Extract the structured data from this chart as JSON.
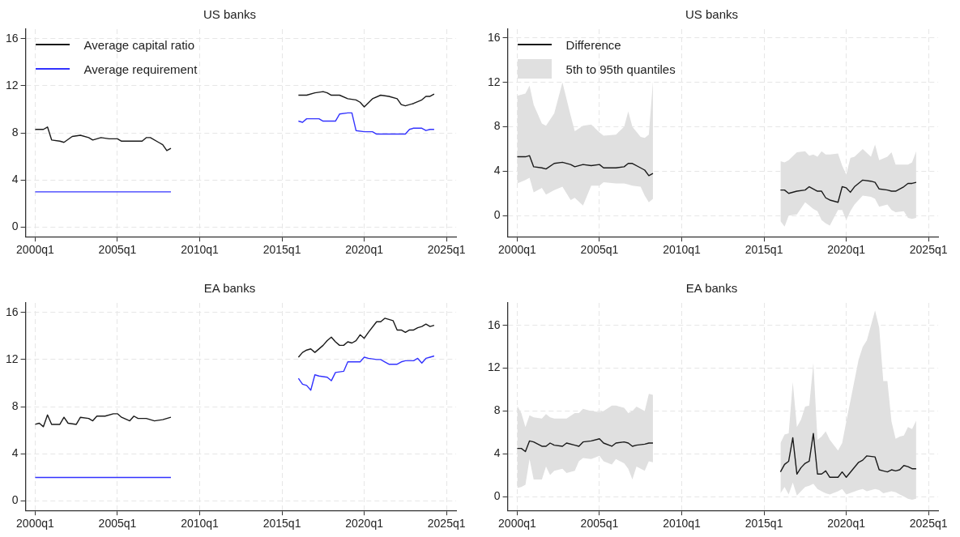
{
  "chart_data": [
    {
      "type": "line",
      "title": "US banks",
      "xlim": [
        "1999-06",
        "2025-08"
      ],
      "xticks": [
        {
          "value": "2000-01",
          "label": "2000q1"
        },
        {
          "value": "2005-01",
          "label": "2005q1"
        },
        {
          "value": "2010-01",
          "label": "2010q1"
        },
        {
          "value": "2015-01",
          "label": "2015q1"
        },
        {
          "value": "2020-01",
          "label": "2020q1"
        },
        {
          "value": "2025-01",
          "label": "2025q1"
        }
      ],
      "ylim": [
        -0.8,
        16.8
      ],
      "yticks": [
        0,
        4,
        8,
        12,
        16
      ],
      "grid": true,
      "legend": "top left",
      "series": [
        {
          "name": "Average capital ratio",
          "color": "#1a1a1a",
          "x": [
            "2000-01",
            "2000-07",
            "2000-10",
            "2001-01",
            "2001-07",
            "2001-10",
            "2002-04",
            "2002-10",
            "2003-04",
            "2003-07",
            "2004-01",
            "2004-07",
            "2005-01",
            "2005-04",
            "2006-01",
            "2006-07",
            "2006-10",
            "2007-01",
            "2007-07",
            "2007-10",
            "2008-01",
            "2008-04",
            "2012-01",
            "2016-01",
            "2016-07",
            "2017-01",
            "2017-07",
            "2017-10",
            "2018-01",
            "2018-07",
            "2019-01",
            "2019-07",
            "2019-10",
            "2020-01",
            "2020-07",
            "2021-01",
            "2021-07",
            "2022-01",
            "2022-04",
            "2022-07",
            "2023-01",
            "2023-07",
            "2023-10",
            "2024-01",
            "2024-04"
          ],
          "values": [
            8.3,
            8.3,
            8.5,
            7.4,
            7.3,
            7.2,
            7.7,
            7.8,
            7.6,
            7.4,
            7.6,
            7.5,
            7.5,
            7.3,
            7.3,
            7.3,
            7.6,
            7.6,
            7.2,
            7.0,
            6.5,
            6.7,
            null,
            11.2,
            11.2,
            11.4,
            11.5,
            11.4,
            11.2,
            11.2,
            10.9,
            10.8,
            10.6,
            10.2,
            10.9,
            11.2,
            11.1,
            10.9,
            10.4,
            10.3,
            10.5,
            10.8,
            11.1,
            11.1,
            11.3
          ]
        },
        {
          "name": "Average requirement",
          "color": "#3333ff",
          "x": [
            "2000-01",
            "2008-04",
            "2012-01",
            "2016-01",
            "2016-04",
            "2016-07",
            "2017-04",
            "2017-07",
            "2018-04",
            "2018-07",
            "2019-01",
            "2019-04",
            "2019-07",
            "2020-01",
            "2020-07",
            "2020-10",
            "2021-07",
            "2022-01",
            "2022-07",
            "2022-10",
            "2023-01",
            "2023-07",
            "2023-10",
            "2024-01",
            "2024-04"
          ],
          "values": [
            3.0,
            3.0,
            null,
            9.0,
            8.9,
            9.2,
            9.2,
            9.0,
            9.0,
            9.6,
            9.7,
            9.7,
            8.2,
            8.1,
            8.1,
            7.9,
            7.9,
            7.9,
            7.9,
            8.3,
            8.4,
            8.4,
            8.2,
            8.3,
            8.3
          ]
        }
      ]
    },
    {
      "type": "line",
      "title": "US banks",
      "xlim": [
        "1999-06",
        "2025-08"
      ],
      "xticks": [
        {
          "value": "2000-01",
          "label": "2000q1"
        },
        {
          "value": "2005-01",
          "label": "2005q1"
        },
        {
          "value": "2010-01",
          "label": "2010q1"
        },
        {
          "value": "2015-01",
          "label": "2015q1"
        },
        {
          "value": "2020-01",
          "label": "2020q1"
        },
        {
          "value": "2025-01",
          "label": "2025q1"
        }
      ],
      "ylim": [
        -1.9,
        16.8
      ],
      "yticks": [
        0,
        4,
        8,
        12,
        16
      ],
      "grid": true,
      "legend": "top left",
      "annotations": [
        "5th to 95th quantiles"
      ],
      "series": [
        {
          "name": "Difference",
          "color": "#1a1a1a",
          "x": [
            "2000-01",
            "2000-07",
            "2000-10",
            "2001-01",
            "2001-07",
            "2001-10",
            "2002-04",
            "2002-10",
            "2003-04",
            "2003-07",
            "2004-01",
            "2004-07",
            "2005-01",
            "2005-04",
            "2006-01",
            "2006-07",
            "2006-10",
            "2007-01",
            "2007-07",
            "2007-10",
            "2008-01",
            "2008-04",
            "2012-01",
            "2016-01",
            "2016-04",
            "2016-07",
            "2017-01",
            "2017-07",
            "2017-10",
            "2018-01",
            "2018-04",
            "2018-07",
            "2018-10",
            "2019-01",
            "2019-07",
            "2019-10",
            "2020-01",
            "2020-04",
            "2020-07",
            "2021-01",
            "2021-07",
            "2021-10",
            "2022-01",
            "2022-07",
            "2022-10",
            "2023-01",
            "2023-07",
            "2023-10",
            "2024-01",
            "2024-04"
          ],
          "values": [
            5.3,
            5.3,
            5.4,
            4.4,
            4.3,
            4.2,
            4.7,
            4.8,
            4.6,
            4.4,
            4.6,
            4.5,
            4.6,
            4.3,
            4.3,
            4.4,
            4.7,
            4.7,
            4.3,
            4.1,
            3.6,
            3.8,
            null,
            2.3,
            2.3,
            2.0,
            2.2,
            2.3,
            2.6,
            2.4,
            2.2,
            2.2,
            1.6,
            1.4,
            1.2,
            2.6,
            2.5,
            2.1,
            2.6,
            3.2,
            3.1,
            3.0,
            2.4,
            2.3,
            2.2,
            2.2,
            2.6,
            2.9,
            2.9,
            3.0
          ],
          "upper": [
            10.8,
            11.0,
            11.7,
            10.0,
            8.3,
            8.1,
            9.2,
            12.0,
            9.0,
            7.6,
            8.1,
            8.2,
            7.5,
            7.2,
            7.3,
            8.0,
            9.4,
            8.0,
            7.1,
            7.0,
            7.3,
            12.1,
            null,
            4.9,
            4.8,
            5.0,
            5.7,
            5.8,
            5.4,
            5.5,
            5.3,
            5.8,
            5.5,
            5.5,
            5.6,
            4.5,
            3.7,
            5.2,
            5.3,
            6.0,
            5.3,
            6.4,
            5.0,
            5.3,
            5.7,
            4.6,
            4.6,
            4.6,
            4.8,
            5.8
          ],
          "lower": [
            2.9,
            3.2,
            3.4,
            2.1,
            2.5,
            1.9,
            2.3,
            2.6,
            1.4,
            1.6,
            0.9,
            2.7,
            2.7,
            3.0,
            2.9,
            2.9,
            2.8,
            2.7,
            2.6,
            1.8,
            1.2,
            1.5,
            null,
            -0.5,
            -1.0,
            0.0,
            0.1,
            1.2,
            0.9,
            0.6,
            0.4,
            -0.4,
            -0.7,
            -0.9,
            0.5,
            0.5,
            -0.4,
            0.4,
            1.0,
            1.8,
            1.7,
            1.5,
            0.8,
            1.0,
            0.5,
            0.3,
            0.4,
            -0.2,
            -0.3,
            -0.2
          ]
        }
      ]
    },
    {
      "type": "line",
      "title": "EA banks",
      "xlim": [
        "1999-06",
        "2025-08"
      ],
      "xticks": [
        {
          "value": "2000-01",
          "label": "2000q1"
        },
        {
          "value": "2005-01",
          "label": "2005q1"
        },
        {
          "value": "2010-01",
          "label": "2010q1"
        },
        {
          "value": "2015-01",
          "label": "2015q1"
        },
        {
          "value": "2020-01",
          "label": "2020q1"
        },
        {
          "value": "2025-01",
          "label": "2025q1"
        }
      ],
      "ylim": [
        -0.8,
        16.8
      ],
      "yticks": [
        0,
        4,
        8,
        12,
        16
      ],
      "grid": true,
      "series": [
        {
          "color": "#1a1a1a",
          "x": [
            "2000-01",
            "2000-04",
            "2000-07",
            "2000-10",
            "2001-01",
            "2001-07",
            "2001-10",
            "2002-01",
            "2002-07",
            "2002-10",
            "2003-04",
            "2003-07",
            "2003-10",
            "2004-04",
            "2004-10",
            "2005-01",
            "2005-04",
            "2005-10",
            "2006-01",
            "2006-04",
            "2006-10",
            "2007-04",
            "2007-10",
            "2008-01",
            "2008-04",
            "2012-01",
            "2016-01",
            "2016-04",
            "2016-07",
            "2016-10",
            "2017-01",
            "2017-07",
            "2017-10",
            "2018-01",
            "2018-04",
            "2018-07",
            "2018-10",
            "2019-01",
            "2019-04",
            "2019-07",
            "2019-10",
            "2020-01",
            "2020-04",
            "2020-10",
            "2021-01",
            "2021-04",
            "2021-10",
            "2022-01",
            "2022-04",
            "2022-07",
            "2022-10",
            "2023-01",
            "2023-04",
            "2023-07",
            "2023-10",
            "2024-01",
            "2024-04"
          ],
          "values": [
            6.5,
            6.6,
            6.3,
            7.3,
            6.5,
            6.5,
            7.1,
            6.6,
            6.5,
            7.1,
            7.0,
            6.8,
            7.2,
            7.2,
            7.4,
            7.4,
            7.1,
            6.8,
            7.2,
            7.0,
            7.0,
            6.8,
            6.9,
            7.0,
            7.1,
            null,
            12.2,
            12.6,
            12.8,
            12.9,
            12.6,
            13.2,
            13.6,
            13.9,
            13.5,
            13.2,
            13.2,
            13.5,
            13.4,
            13.6,
            14.1,
            13.8,
            14.3,
            15.2,
            15.2,
            15.5,
            15.3,
            14.5,
            14.5,
            14.3,
            14.5,
            14.5,
            14.7,
            14.8,
            15.0,
            14.8,
            14.9
          ]
        },
        {
          "color": "#3333ff",
          "x": [
            "2000-01",
            "2008-04",
            "2012-01",
            "2016-01",
            "2016-04",
            "2016-07",
            "2016-10",
            "2017-01",
            "2017-04",
            "2017-10",
            "2018-01",
            "2018-04",
            "2018-10",
            "2019-01",
            "2019-07",
            "2019-10",
            "2020-01",
            "2020-04",
            "2020-10",
            "2021-01",
            "2021-04",
            "2021-07",
            "2022-01",
            "2022-04",
            "2022-07",
            "2023-01",
            "2023-04",
            "2023-07",
            "2023-10",
            "2024-01",
            "2024-04"
          ],
          "values": [
            2.0,
            2.0,
            null,
            10.4,
            9.9,
            9.8,
            9.4,
            10.7,
            10.6,
            10.5,
            10.2,
            10.9,
            11.0,
            11.8,
            11.8,
            11.8,
            12.2,
            12.1,
            12.0,
            12.0,
            11.8,
            11.6,
            11.6,
            11.8,
            11.9,
            11.9,
            12.1,
            11.7,
            12.1,
            12.2,
            12.3
          ]
        }
      ]
    },
    {
      "type": "line",
      "title": "EA banks",
      "xlim": [
        "1999-06",
        "2025-08"
      ],
      "xticks": [
        {
          "value": "2000-01",
          "label": "2000q1"
        },
        {
          "value": "2005-01",
          "label": "2005q1"
        },
        {
          "value": "2010-01",
          "label": "2010q1"
        },
        {
          "value": "2015-01",
          "label": "2015q1"
        },
        {
          "value": "2020-01",
          "label": "2020q1"
        },
        {
          "value": "2025-01",
          "label": "2025q1"
        }
      ],
      "ylim": [
        -1.3,
        18.1
      ],
      "yticks": [
        0,
        4,
        8,
        12,
        16
      ],
      "grid": true,
      "series": [
        {
          "color": "#1a1a1a",
          "x": [
            "2000-01",
            "2000-04",
            "2000-07",
            "2000-10",
            "2001-01",
            "2001-07",
            "2001-10",
            "2002-01",
            "2002-04",
            "2002-10",
            "2003-01",
            "2003-07",
            "2003-10",
            "2004-01",
            "2004-07",
            "2005-01",
            "2005-04",
            "2005-10",
            "2006-01",
            "2006-07",
            "2006-10",
            "2007-01",
            "2007-04",
            "2007-10",
            "2008-01",
            "2008-04",
            "2012-01",
            "2016-01",
            "2016-04",
            "2016-07",
            "2016-10",
            "2017-01",
            "2017-04",
            "2017-07",
            "2017-10",
            "2018-01",
            "2018-04",
            "2018-07",
            "2018-10",
            "2019-01",
            "2019-07",
            "2019-10",
            "2020-01",
            "2020-10",
            "2021-01",
            "2021-04",
            "2021-10",
            "2022-01",
            "2022-04",
            "2022-07",
            "2022-10",
            "2023-01",
            "2023-04",
            "2023-07",
            "2023-10",
            "2024-01",
            "2024-04"
          ],
          "values": [
            4.5,
            4.5,
            4.2,
            5.2,
            5.1,
            4.7,
            4.7,
            5.0,
            4.8,
            4.7,
            5.0,
            4.8,
            4.7,
            5.1,
            5.2,
            5.4,
            5.0,
            4.7,
            5.0,
            5.1,
            5.0,
            4.7,
            4.8,
            4.9,
            5.0,
            5.0,
            null,
            2.3,
            3.0,
            3.3,
            5.5,
            2.1,
            2.7,
            3.1,
            3.3,
            5.9,
            2.1,
            2.1,
            2.4,
            1.8,
            1.8,
            2.3,
            1.8,
            3.2,
            3.4,
            3.8,
            3.7,
            2.5,
            2.4,
            2.3,
            2.5,
            2.4,
            2.5,
            2.9,
            2.8,
            2.6,
            2.6
          ],
          "upper": [
            8.5,
            7.8,
            6.5,
            7.6,
            7.4,
            7.3,
            7.7,
            7.4,
            7.3,
            7.3,
            7.3,
            7.8,
            7.8,
            8.2,
            8.0,
            7.9,
            8.0,
            8.5,
            8.5,
            8.3,
            7.8,
            8.0,
            8.4,
            8.0,
            9.6,
            9.5,
            null,
            5.0,
            5.8,
            5.9,
            10.7,
            6.5,
            7.2,
            8.4,
            8.5,
            12.5,
            5.3,
            5.6,
            6.1,
            5.3,
            4.3,
            5.0,
            7.0,
            12.8,
            14.0,
            14.6,
            17.4,
            15.8,
            10.8,
            10.8,
            7.0,
            5.4,
            5.6,
            5.7,
            6.5,
            6.3,
            7.1
          ],
          "lower": [
            0.8,
            0.9,
            1.1,
            3.5,
            1.6,
            1.6,
            2.8,
            2.0,
            2.4,
            2.6,
            2.2,
            2.4,
            3.3,
            3.6,
            3.5,
            3.8,
            3.3,
            3.0,
            3.5,
            3.1,
            2.6,
            1.6,
            2.8,
            2.4,
            3.3,
            3.2,
            null,
            0.3,
            0.9,
            0.2,
            1.3,
            0.1,
            0.5,
            0.9,
            1.0,
            1.2,
            0.7,
            0.5,
            0.3,
            0.2,
            0.5,
            0.7,
            0.2,
            0.6,
            0.7,
            0.5,
            0.7,
            0.6,
            0.3,
            0.4,
            0.5,
            0.4,
            0.2,
            0.0,
            -0.2,
            -0.3,
            -0.2
          ]
        }
      ]
    }
  ]
}
